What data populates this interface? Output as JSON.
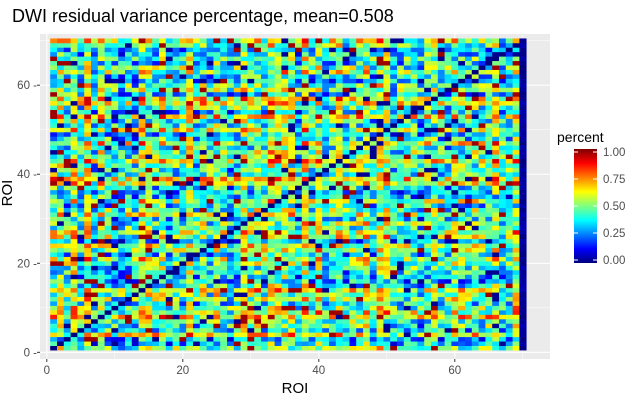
{
  "chart_data": {
    "type": "heatmap",
    "title": "DWI residual variance percentage, mean=0.508",
    "xlabel": "ROI",
    "ylabel": "ROI",
    "n_rows": 70,
    "n_cols": 70,
    "xlim": [
      -1,
      74
    ],
    "ylim": [
      -1.5,
      71.5
    ],
    "x_ticks": [
      0,
      20,
      40,
      60
    ],
    "y_ticks": [
      0,
      20,
      40,
      60
    ],
    "x_tick_labels": [
      "0",
      "20",
      "40",
      "60"
    ],
    "y_tick_labels": [
      "0 -",
      "20 -",
      "40 -",
      "60 -"
    ],
    "mean": 0.508,
    "diagonal_value": 0.0,
    "last_column_value_range": [
      0.0,
      0.05
    ],
    "value_range": [
      0,
      1
    ],
    "grid": true,
    "legend": {
      "title": "percent",
      "position": "right",
      "breaks": [
        1.0,
        0.75,
        0.5,
        0.25,
        0.0
      ],
      "labels": [
        "1.00",
        "0.75",
        "0.50",
        "0.25",
        "0.00"
      ]
    },
    "colorscale": [
      "#00007F",
      "#0000FF",
      "#007FFF",
      "#00FFFF",
      "#7FFF7F",
      "#FFFF00",
      "#FF7F00",
      "#FF0000",
      "#7F0000"
    ],
    "panel_background": "#EBEBEB",
    "grid_color": "#FFFFFF"
  }
}
